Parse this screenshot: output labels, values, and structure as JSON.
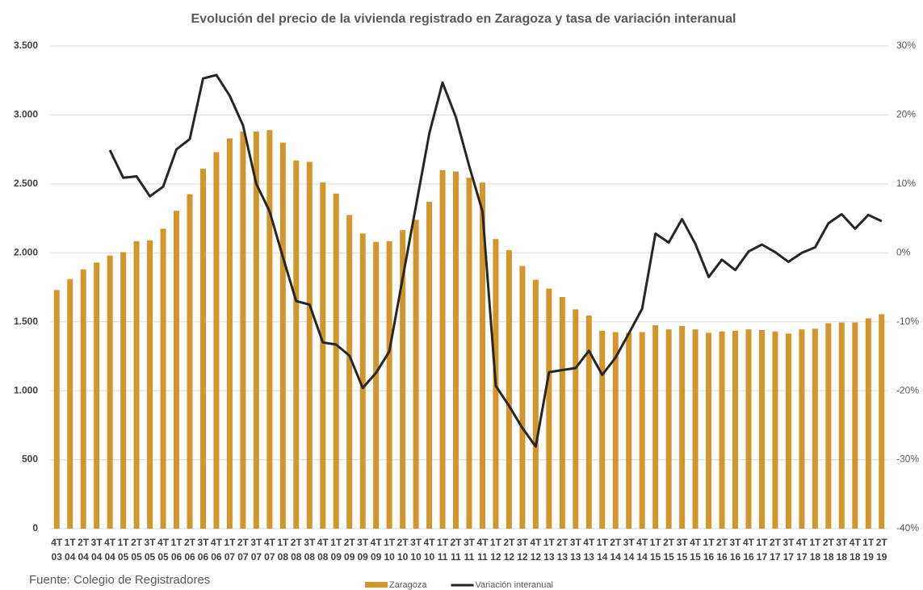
{
  "chart_data": {
    "type": "bar_line",
    "title": "Evolución del precio de la vivienda registrado en Zaragoza y tasa de variación interanual",
    "source": "Fuente: Colegio de Registradores",
    "categories": [
      "4T03",
      "1T04",
      "2T04",
      "3T04",
      "4T04",
      "1T05",
      "2T05",
      "3T05",
      "4T05",
      "1T06",
      "2T06",
      "3T06",
      "4T06",
      "1T07",
      "2T07",
      "3T07",
      "4T07",
      "1T08",
      "2T08",
      "3T08",
      "4T08",
      "1T09",
      "2T09",
      "3T09",
      "4T09",
      "1T10",
      "2T10",
      "3T10",
      "4T10",
      "1T11",
      "2T11",
      "3T11",
      "4T11",
      "1T12",
      "2T12",
      "3T12",
      "4T12",
      "1T13",
      "2T13",
      "3T13",
      "4T13",
      "1T14",
      "2T14",
      "3T14",
      "4T14",
      "1T15",
      "2T15",
      "3T15",
      "4T15",
      "1T16",
      "2T16",
      "3T16",
      "4T16",
      "1T17",
      "2T17",
      "3T17",
      "4T17",
      "1T18",
      "2T18",
      "3T18",
      "4T18",
      "1T19",
      "2T19"
    ],
    "series": [
      {
        "name": "Zaragoza",
        "type": "bar",
        "color": "#d4952b",
        "values": [
          1730,
          1810,
          1880,
          1930,
          1980,
          2005,
          2085,
          2090,
          2175,
          2305,
          2425,
          2610,
          2730,
          2830,
          2880,
          2880,
          2890,
          2800,
          2670,
          2660,
          2510,
          2430,
          2275,
          2140,
          2080,
          2085,
          2165,
          2240,
          2370,
          2600,
          2590,
          2545,
          2510,
          2100,
          2020,
          1905,
          1805,
          1740,
          1680,
          1590,
          1545,
          1435,
          1425,
          1420,
          1425,
          1475,
          1445,
          1470,
          1445,
          1420,
          1430,
          1435,
          1445,
          1440,
          1430,
          1415,
          1445,
          1450,
          1490,
          1495,
          1495,
          1525,
          1555
        ]
      },
      {
        "name": "Variación interanual",
        "type": "line",
        "axis": "y2",
        "color": "#262626",
        "values": [
          null,
          null,
          null,
          null,
          14.9,
          10.9,
          11.1,
          8.2,
          9.6,
          15,
          16.5,
          25.3,
          25.8,
          22.8,
          18.5,
          10,
          6,
          -0.6,
          -7,
          -7.5,
          -13,
          -13.3,
          -14.9,
          -19.6,
          -17.4,
          -14.3,
          -3.7,
          6.8,
          17.3,
          24.7,
          19.7,
          12.6,
          6,
          -19.3,
          -22.2,
          -25.4,
          -28.1,
          -17.3,
          -17,
          -16.7,
          -14.2,
          -17.7,
          -15.2,
          -11.7,
          -8.1,
          2.8,
          1.5,
          4.9,
          1.3,
          -3.5,
          -1,
          -2.5,
          0.2,
          1.2,
          0.1,
          -1.3,
          0,
          0.8,
          4.3,
          5.6,
          3.5,
          5.5,
          4.6
        ]
      }
    ],
    "ylim": [
      0,
      3500
    ],
    "yticks": [
      0,
      500,
      {
        "value": 1000,
        "label": "1.000"
      },
      {
        "value": 1500,
        "label": "1.500"
      },
      {
        "value": 2000,
        "label": "2.000"
      },
      {
        "value": 2500,
        "label": "2.500"
      },
      {
        "value": 3000,
        "label": "3.000"
      },
      {
        "value": 3500,
        "label": "3.500"
      }
    ],
    "y2lim": [
      -40,
      30
    ],
    "y2ticks": [
      {
        "value": -40,
        "label": "-40%"
      },
      {
        "value": -30,
        "label": "-30%"
      },
      {
        "value": -20,
        "label": "-20%"
      },
      {
        "value": -10,
        "label": "-10%"
      },
      {
        "value": 0,
        "label": "0%"
      },
      {
        "value": 10,
        "label": "10%"
      },
      {
        "value": 20,
        "label": "20%"
      },
      {
        "value": 30,
        "label": "30%"
      }
    ],
    "grid": true
  }
}
